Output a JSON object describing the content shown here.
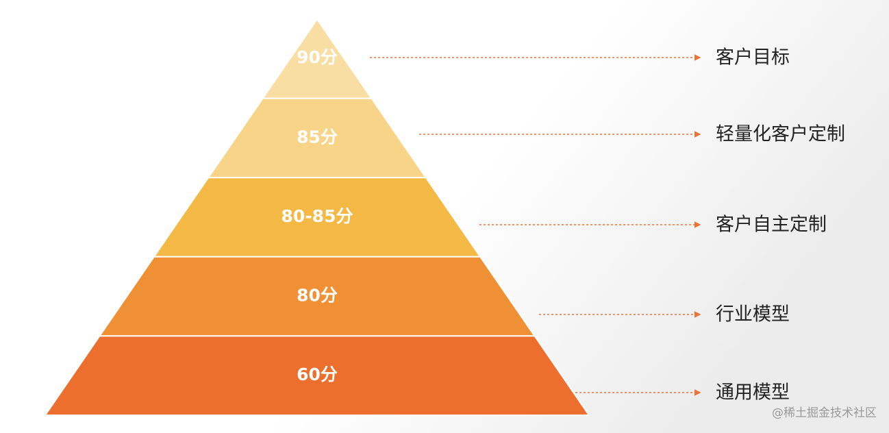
{
  "levels": [
    {
      "score": "90分",
      "label": "客户目标"
    },
    {
      "score": "85分",
      "label": "轻量化客户定制"
    },
    {
      "score": "80-85分",
      "label": "客户自主定制"
    },
    {
      "score": "80分",
      "label": "行业模型"
    },
    {
      "score": "60分",
      "label": "通用模型"
    }
  ],
  "watermark": "@稀土掘金技术社区"
}
